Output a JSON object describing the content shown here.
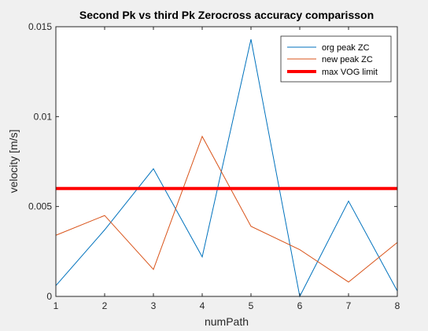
{
  "colors": {
    "figure_bg": "#f0f0f0",
    "axes_bg": "#ffffff",
    "axis_line": "#262626"
  },
  "chart_data": {
    "type": "line",
    "title": "Second Pk vs third Pk Zerocross accuracy comparisson",
    "xlabel": "numPath",
    "ylabel": "velocity [m/s]",
    "xlim": [
      1,
      8
    ],
    "ylim": [
      0,
      0.015
    ],
    "xticks": [
      1,
      2,
      3,
      4,
      5,
      6,
      7,
      8
    ],
    "xtick_labels": [
      "1",
      "2",
      "3",
      "4",
      "5",
      "6",
      "7",
      "8"
    ],
    "yticks": [
      0,
      0.005,
      0.01,
      0.015
    ],
    "ytick_labels": [
      "0",
      "0.005",
      "0.01",
      "0.015"
    ],
    "grid": false,
    "legend_placement": "top-right",
    "x": [
      1,
      2,
      3,
      4,
      5,
      6,
      7,
      8
    ],
    "series": [
      {
        "name": "org peak ZC",
        "color": "#0072BD",
        "width": 1,
        "values": [
          0.0006,
          0.0037,
          0.0071,
          0.0022,
          0.0143,
          0.0,
          0.0053,
          0.0003
        ]
      },
      {
        "name": "new peak ZC",
        "color": "#D95319",
        "width": 1,
        "values": [
          0.0034,
          0.0045,
          0.0015,
          0.0089,
          0.0039,
          0.0026,
          0.0008,
          0.003
        ]
      },
      {
        "name": "max VOG limit",
        "color": "#FF0000",
        "width": 4,
        "values": [
          0.006,
          0.006,
          0.006,
          0.006,
          0.006,
          0.006,
          0.006,
          0.006
        ]
      }
    ]
  }
}
